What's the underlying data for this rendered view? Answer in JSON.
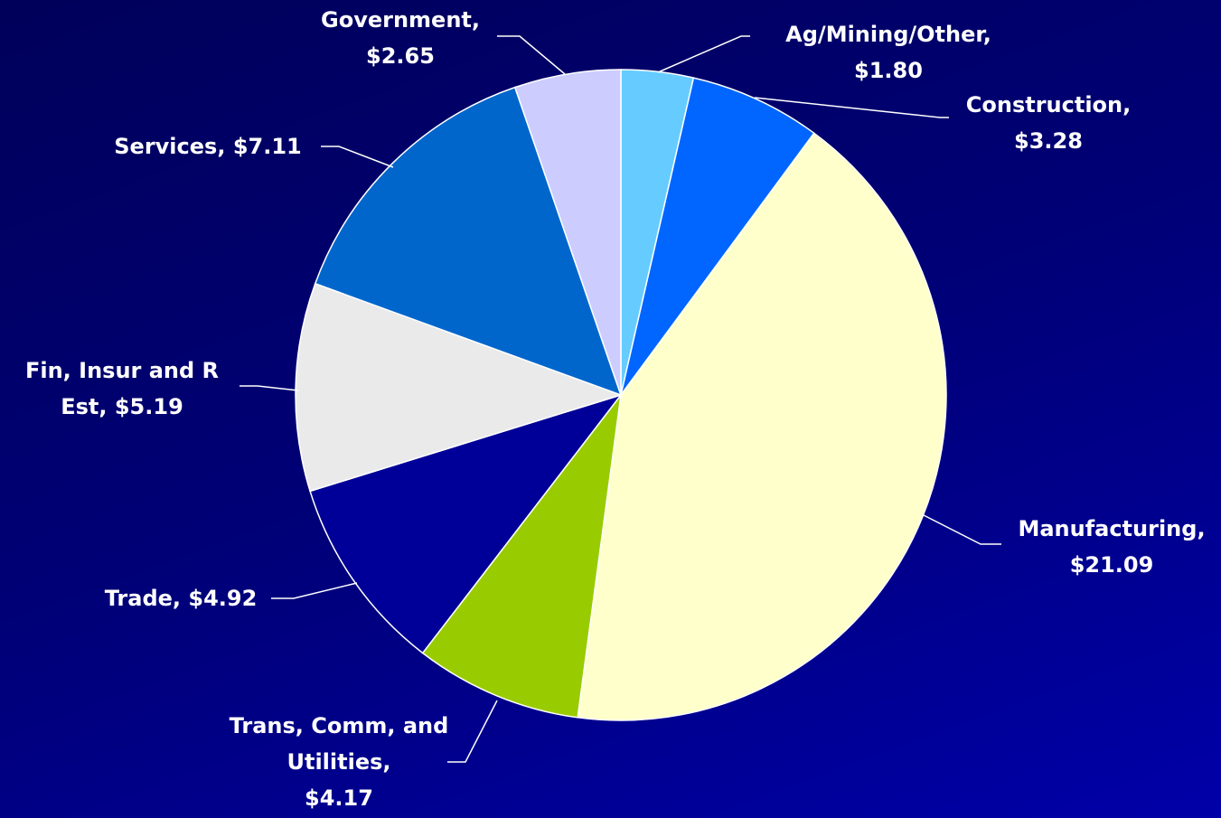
{
  "chart_data": {
    "type": "pie",
    "categories": [
      "Ag/Mining/Other,",
      "Construction,",
      "Manufacturing,",
      "Trans, Comm, and Utilities,",
      "Trade,",
      "Fin, Insur and R Est,",
      "Services,",
      "Government,"
    ],
    "values": [
      1.8,
      3.28,
      21.09,
      4.17,
      4.92,
      5.19,
      7.11,
      2.65
    ],
    "value_labels": [
      "$1.80",
      "$3.28",
      "$21.09",
      "$4.17",
      "$4.92",
      "$5.19",
      "$7.11",
      "$2.65"
    ],
    "colors": [
      "#66ccff",
      "#0066ff",
      "#ffffcc",
      "#99cc00",
      "#000099",
      "#eaeaea",
      "#0066cc",
      "#ccccff"
    ]
  }
}
